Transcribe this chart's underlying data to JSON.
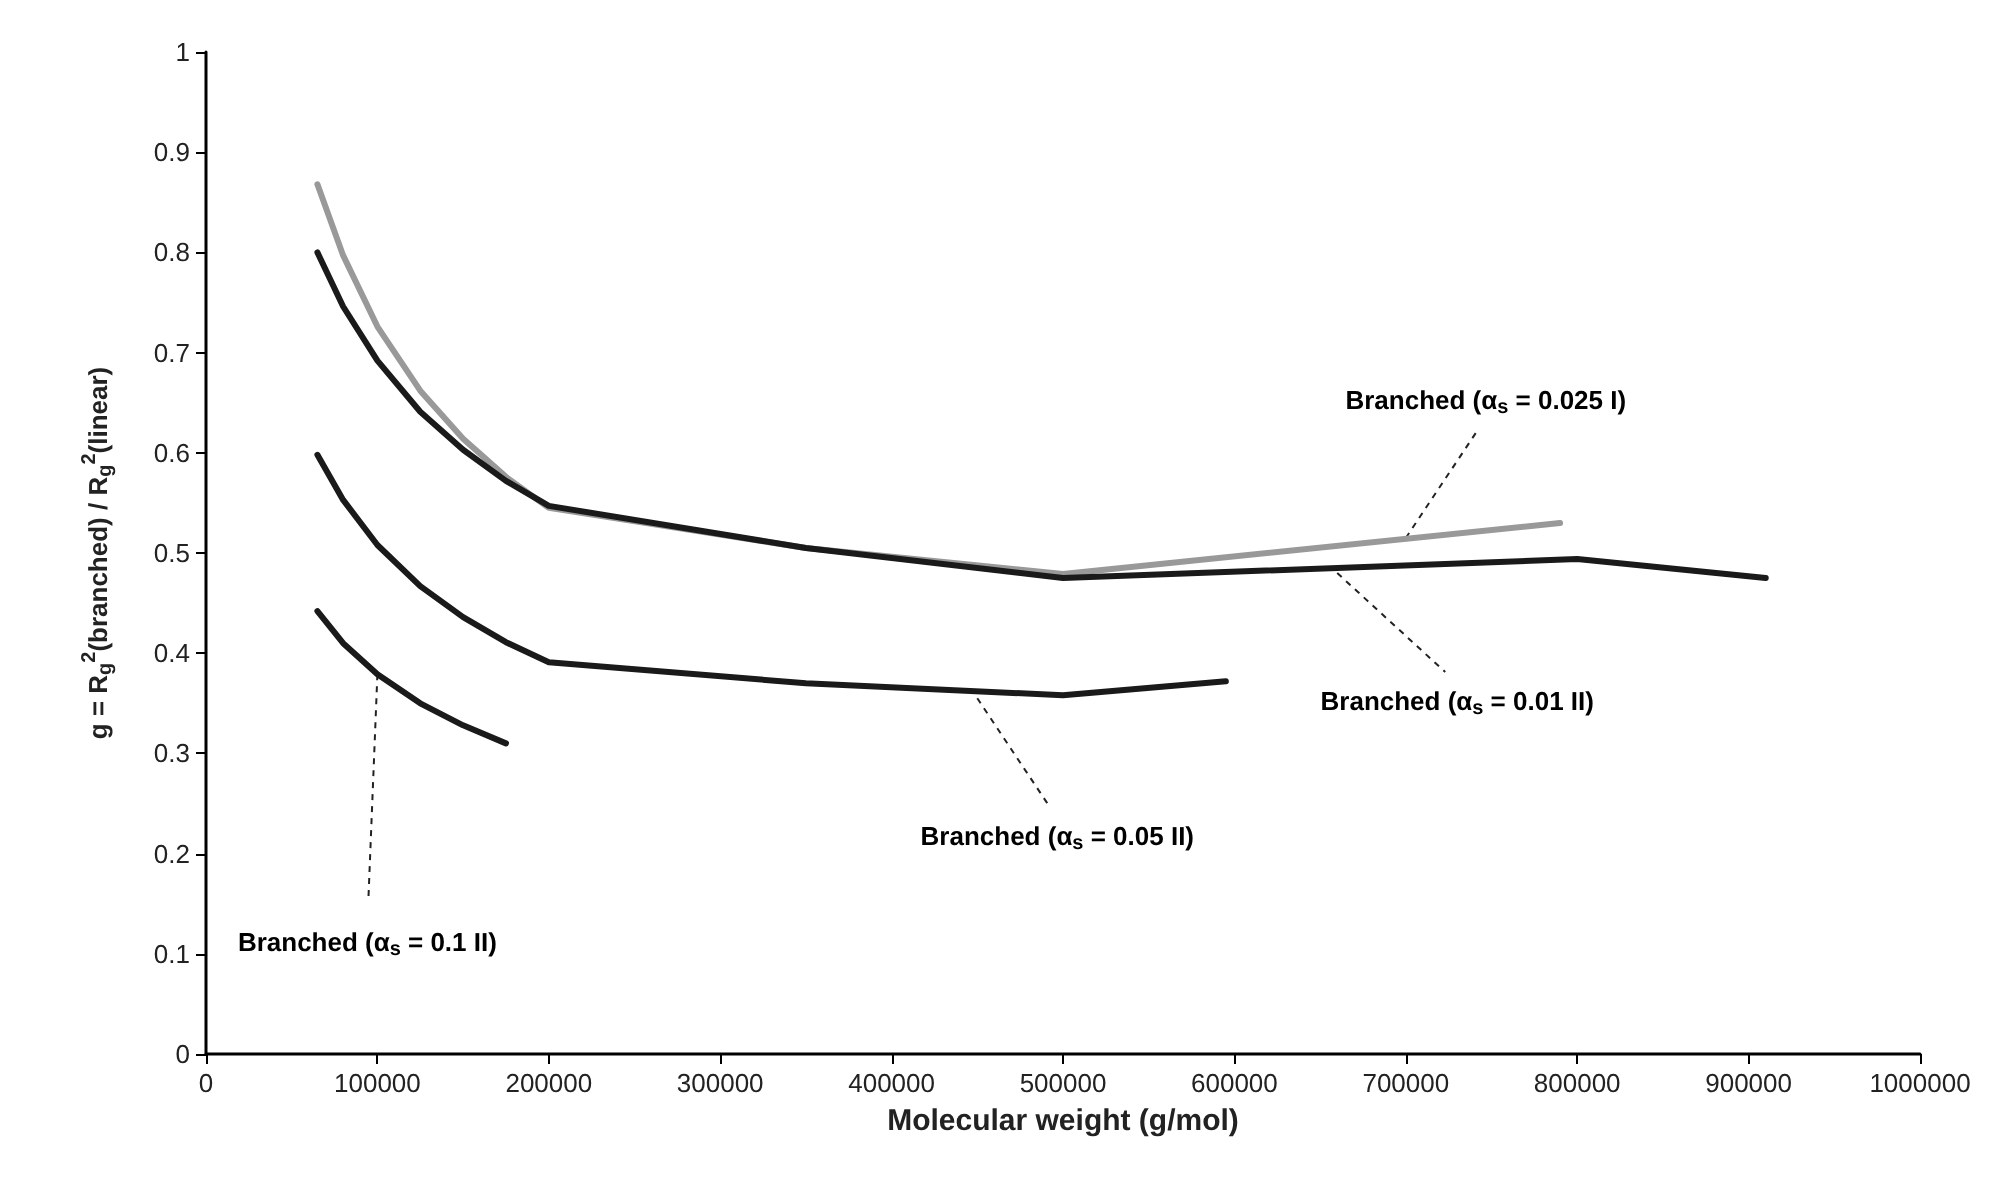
{
  "chart_data": {
    "type": "line",
    "xlabel": "Molecular weight (g/mol)",
    "ylabel": "g = R$_{g}$$^{2}$(branched) / R$_{g}$$^{2}$(linear)",
    "xlim": [
      0,
      1000000
    ],
    "xticks": [
      0,
      100000,
      200000,
      300000,
      400000,
      500000,
      600000,
      700000,
      800000,
      900000,
      1000000
    ],
    "ylim": [
      0,
      1
    ],
    "yticks": [
      0,
      0.1,
      0.2,
      0.3,
      0.4,
      0.5,
      0.6,
      0.7,
      0.8,
      0.9,
      1
    ],
    "grid": false,
    "marker": "none",
    "line_style": "solid",
    "series": [
      {
        "color": "#999999",
        "x": [
          65000,
          80000,
          100000,
          125000,
          150000,
          175000,
          200000,
          350000,
          500000,
          790000
        ],
        "values": [
          0.868,
          0.797,
          0.726,
          0.662,
          0.614,
          0.576,
          0.545,
          0.505,
          0.479,
          0.53
        ]
      },
      {
        "color": "#1a1a1a",
        "x": [
          65000,
          80000,
          100000,
          125000,
          150000,
          175000,
          200000,
          350000,
          500000,
          800000,
          910000
        ],
        "values": [
          0.8,
          0.746,
          0.692,
          0.641,
          0.603,
          0.572,
          0.547,
          0.505,
          0.475,
          0.494,
          0.475
        ]
      },
      {
        "color": "#1a1a1a",
        "x": [
          65000,
          80000,
          100000,
          125000,
          150000,
          175000,
          200000,
          350000,
          500000,
          595000
        ],
        "values": [
          0.598,
          0.553,
          0.508,
          0.467,
          0.436,
          0.411,
          0.391,
          0.37,
          0.358,
          0.372
        ]
      },
      {
        "color": "#1a1a1a",
        "x": [
          65000,
          80000,
          100000,
          125000,
          150000,
          175000
        ],
        "values": [
          0.442,
          0.41,
          0.379,
          0.35,
          0.328,
          0.31
        ]
      }
    ],
    "annotations": [
      {
        "text": "Branched (α$_{s}$ = 0.025 I)",
        "x": 700000,
        "y": 0.515
      },
      {
        "text": "Branched (α$_{s}$ = 0.01 II)",
        "x": 660000,
        "y": 0.48
      },
      {
        "text": "Branched (α$_{s}$ = 0.05 II)",
        "x": 450000,
        "y": 0.355
      },
      {
        "text": "Branched (α$_{s}$ = 0.1 II)",
        "x": 100000,
        "y": 0.379
      }
    ]
  }
}
